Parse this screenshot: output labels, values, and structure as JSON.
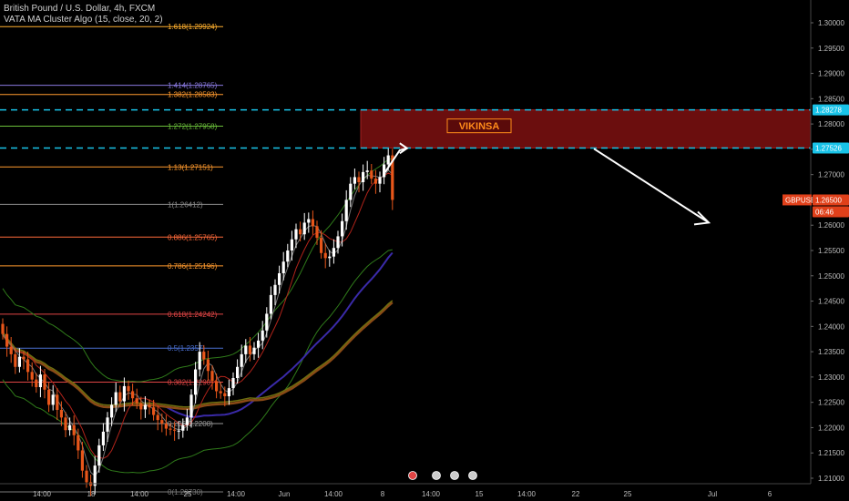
{
  "header": {
    "title": "British Pound / U.S. Dollar, 4h, FXCM",
    "indicator": "VATA MA Cluster Algo (15, close, 20, 2)"
  },
  "zone_label": "VIKINSA",
  "price_tag": {
    "symbol": "GBPUSD",
    "price": "1.26500",
    "countdown": "06:46"
  },
  "level_tags": {
    "upper": "1.28278",
    "lower": "1.27526"
  },
  "colors": {
    "background": "#000000",
    "up_candle": "#ffffff",
    "down_candle": "#e8561a",
    "zone_fill": "#6b0e0e",
    "zone_label": "#ff8c1a",
    "dashed_level": "#19c3e8",
    "arrow": "#ffffff",
    "ma_navy": "#3a2aa8",
    "ma_brown": "#8a4a16",
    "ma_olive": "#6e6e10",
    "band_green": "#2f7a1a",
    "ma_red": "#b0231a"
  },
  "chart_data": {
    "type": "candlestick",
    "symbol": "GBPUSD",
    "timeframe": "4h",
    "ylim": [
      1.2055,
      1.3045
    ],
    "y_ticks": [
      "1.30000",
      "1.29500",
      "1.29000",
      "1.28500",
      "1.28000",
      "1.27500",
      "1.27000",
      "1.26500",
      "1.26000",
      "1.25500",
      "1.25000",
      "1.24500",
      "1.24000",
      "1.23500",
      "1.23000",
      "1.22500",
      "1.22000",
      "1.21500",
      "1.21000"
    ],
    "x_ticks": [
      "14:00",
      "18",
      "14:00",
      "25",
      "14:00",
      "Jun",
      "14:00",
      "8",
      "14:00",
      "15",
      "14:00",
      "22",
      "25",
      "Jul",
      "6"
    ],
    "fibonacci": [
      {
        "label": "0(1.20730)",
        "price": 1.2073,
        "color": "#7a7a7a"
      },
      {
        "label": "0.236(1.2208)",
        "price": 1.2208,
        "color": "#9a9a9a"
      },
      {
        "label": "0.382(1.2290)",
        "price": 1.229,
        "color": "#e04545"
      },
      {
        "label": "0.5(1.2357)",
        "price": 1.2357,
        "color": "#4a6fd0"
      },
      {
        "label": "0.618(1.24242)",
        "price": 1.24242,
        "color": "#e04545"
      },
      {
        "label": "0.786(1.25196)",
        "price": 1.25196,
        "color": "#ff9a2e"
      },
      {
        "label": "0.886(1.25765)",
        "price": 1.25765,
        "color": "#ff6a3a"
      },
      {
        "label": "1(1.26412)",
        "price": 1.26412,
        "color": "#8a8a8a"
      },
      {
        "label": "1.13(1.27151)",
        "price": 1.27151,
        "color": "#ff9a2e"
      },
      {
        "label": "1.272(1.27958)",
        "price": 1.27958,
        "color": "#6abf3a"
      },
      {
        "label": "1.382(1.28583)",
        "price": 1.28583,
        "color": "#ff9a2e"
      },
      {
        "label": "1.414(1.28765)",
        "price": 1.28765,
        "color": "#8a7ae0"
      },
      {
        "label": "1.618(1.29924)",
        "price": 1.29924,
        "color": "#ffb02e"
      }
    ],
    "resistance_zone": {
      "low": 1.27526,
      "high": 1.28278
    },
    "last_price": 1.265,
    "forecast_arrow_target": 1.2605,
    "candle_closes": [
      1.2385,
      1.236,
      1.2345,
      1.232,
      1.234,
      1.2335,
      1.231,
      1.2295,
      1.228,
      1.2305,
      1.2275,
      1.2245,
      1.2265,
      1.2235,
      1.222,
      1.2195,
      1.2205,
      1.2185,
      1.2155,
      1.2115,
      1.2092,
      1.2085,
      1.2125,
      1.2165,
      1.2192,
      1.222,
      1.2245,
      1.227,
      1.2252,
      1.2282,
      1.2272,
      1.2258,
      1.2248,
      1.2236,
      1.2245,
      1.224,
      1.2225,
      1.2215,
      1.2208,
      1.2198,
      1.2196,
      1.2194,
      1.2194,
      1.2205,
      1.222,
      1.2265,
      1.2315,
      1.235,
      1.2335,
      1.2312,
      1.2292,
      1.2272,
      1.2268,
      1.2262,
      1.2278,
      1.2298,
      1.232,
      1.2345,
      1.2362,
      1.2345,
      1.2358,
      1.2372,
      1.2392,
      1.2425,
      1.2462,
      1.2482,
      1.2505,
      1.2528,
      1.255,
      1.2572,
      1.2592,
      1.2582,
      1.2605,
      1.2612,
      1.2598,
      1.2575,
      1.2545,
      1.2535,
      1.2538,
      1.2555,
      1.2578,
      1.2608,
      1.265,
      1.2682,
      1.2695,
      1.2685,
      1.2705,
      1.2708,
      1.2692,
      1.2682,
      1.2695,
      1.272,
      1.2738,
      1.265
    ]
  }
}
